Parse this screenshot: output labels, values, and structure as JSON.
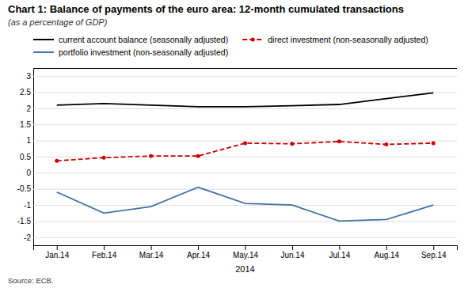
{
  "chart_data": {
    "type": "line",
    "title": "Chart 1: Balance of payments of the euro area: 12-month cumulated transactions",
    "subtitle": "(as a percentage of GDP)",
    "xlabel": "2014",
    "source": "Source: ECB.",
    "categories": [
      "Jan.14",
      "Feb.14",
      "Mar.14",
      "Apr.14",
      "May.14",
      "Jun.14",
      "Jul.14",
      "Aug.14",
      "Sep.14"
    ],
    "series": [
      {
        "name": "current account balance (seasonally adjusted)",
        "color": "#000000",
        "line_style": "solid",
        "values": [
          2.1,
          2.15,
          2.1,
          2.05,
          2.05,
          2.08,
          2.12,
          2.3,
          2.48
        ]
      },
      {
        "name": "direct investment (non-seasonally adjusted)",
        "color": "#cc0000",
        "line_style": "dashed",
        "marker": "circle",
        "values": [
          0.37,
          0.47,
          0.52,
          0.52,
          0.92,
          0.9,
          0.97,
          0.88,
          0.92
        ]
      },
      {
        "name": "portfolio investment (non-seasonally adjusted)",
        "color": "#4472a8",
        "line_style": "solid",
        "values": [
          -0.6,
          -1.25,
          -1.05,
          -0.45,
          -0.95,
          -1.0,
          -1.5,
          -1.45,
          -1.0
        ]
      }
    ],
    "ylim": [
      -2.25,
      3.25
    ],
    "yticks": [
      -2,
      -1.5,
      -1,
      -0.5,
      0,
      0.5,
      1,
      1.5,
      2,
      2.5,
      3
    ],
    "grid": true,
    "legend": "top"
  }
}
